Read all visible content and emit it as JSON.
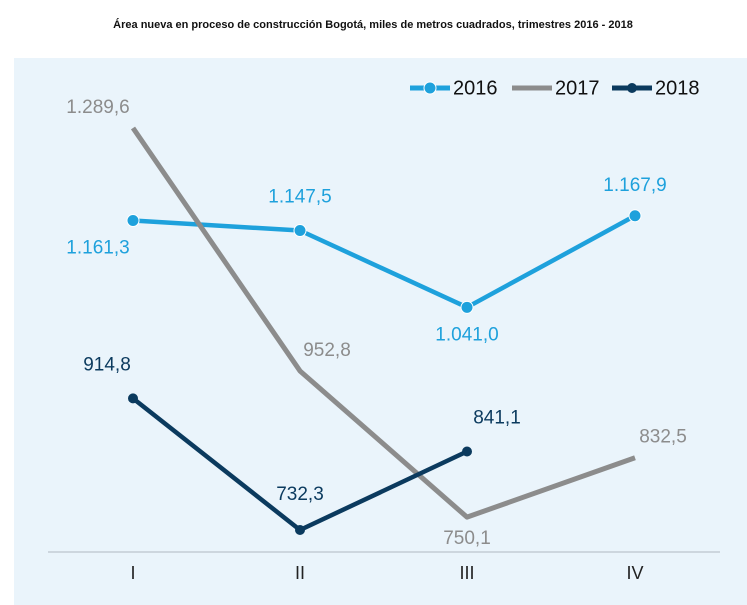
{
  "chart_data": {
    "type": "line",
    "title": "Área nueva en proceso de construcción Bogotá, miles de metros cuadrados, trimestres 2016 - 2018",
    "categories": [
      "I",
      "II",
      "III",
      "IV"
    ],
    "legend": "top-right",
    "series": [
      {
        "name": "2016",
        "color": "#1ea1dc",
        "values": [
          1161.3,
          1147.5,
          1041.0,
          1167.9
        ],
        "value_labels": [
          "1.161,3",
          "1.147,5",
          "1.041,0",
          "1.167,9"
        ]
      },
      {
        "name": "2017",
        "color": "#8c8c8c",
        "values": [
          1289.6,
          952.8,
          750.1,
          832.5
        ],
        "value_labels": [
          "1.289,6",
          "952,8",
          "750,1",
          "832,5"
        ]
      },
      {
        "name": "2018",
        "color": "#0b3a5e",
        "values": [
          914.8,
          732.3,
          841.1,
          null
        ],
        "value_labels": [
          "914,8",
          "732,3",
          "841,1",
          null
        ]
      }
    ]
  }
}
